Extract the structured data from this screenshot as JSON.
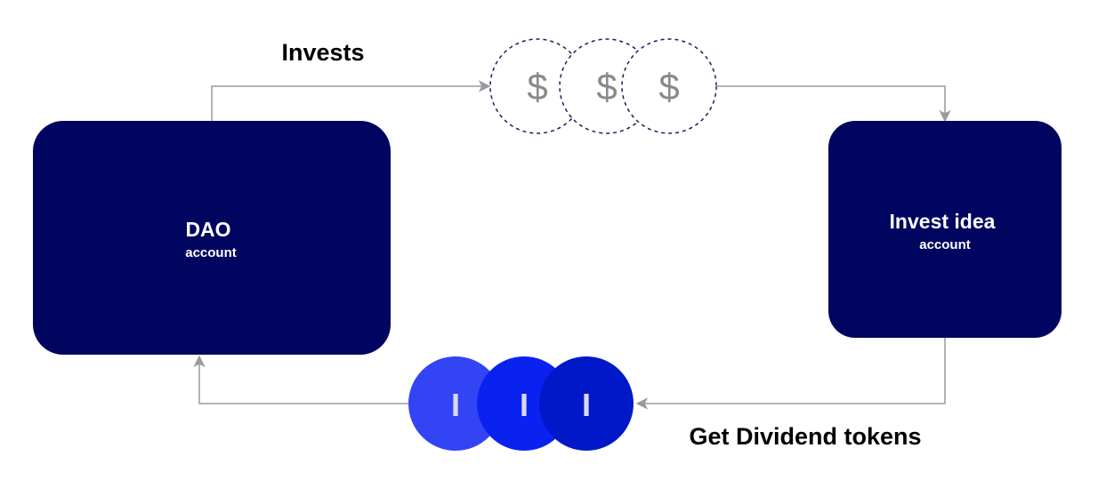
{
  "nodes": {
    "dao": {
      "title": "DAO",
      "subtitle": "account"
    },
    "invest_idea": {
      "title": "Invest idea",
      "subtitle": "account"
    }
  },
  "edges": {
    "invests": {
      "label": "Invests"
    },
    "dividends": {
      "label": "Get Dividend tokens"
    }
  },
  "coins": {
    "dollar": {
      "glyph": "$",
      "count": 3
    },
    "token": {
      "glyph": "I",
      "count": 3
    }
  },
  "colors": {
    "box_fill": "#000660",
    "box_text": "#ffffff",
    "connector": "#9a9a9a",
    "dollar_border": "#1a1f5c",
    "dollar_glyph": "#8a8a8a",
    "token_fills": [
      "#3344f5",
      "#0a22f0",
      "#0018c8"
    ],
    "token_glyph": "#d9d9e8",
    "label_text": "#000000"
  }
}
